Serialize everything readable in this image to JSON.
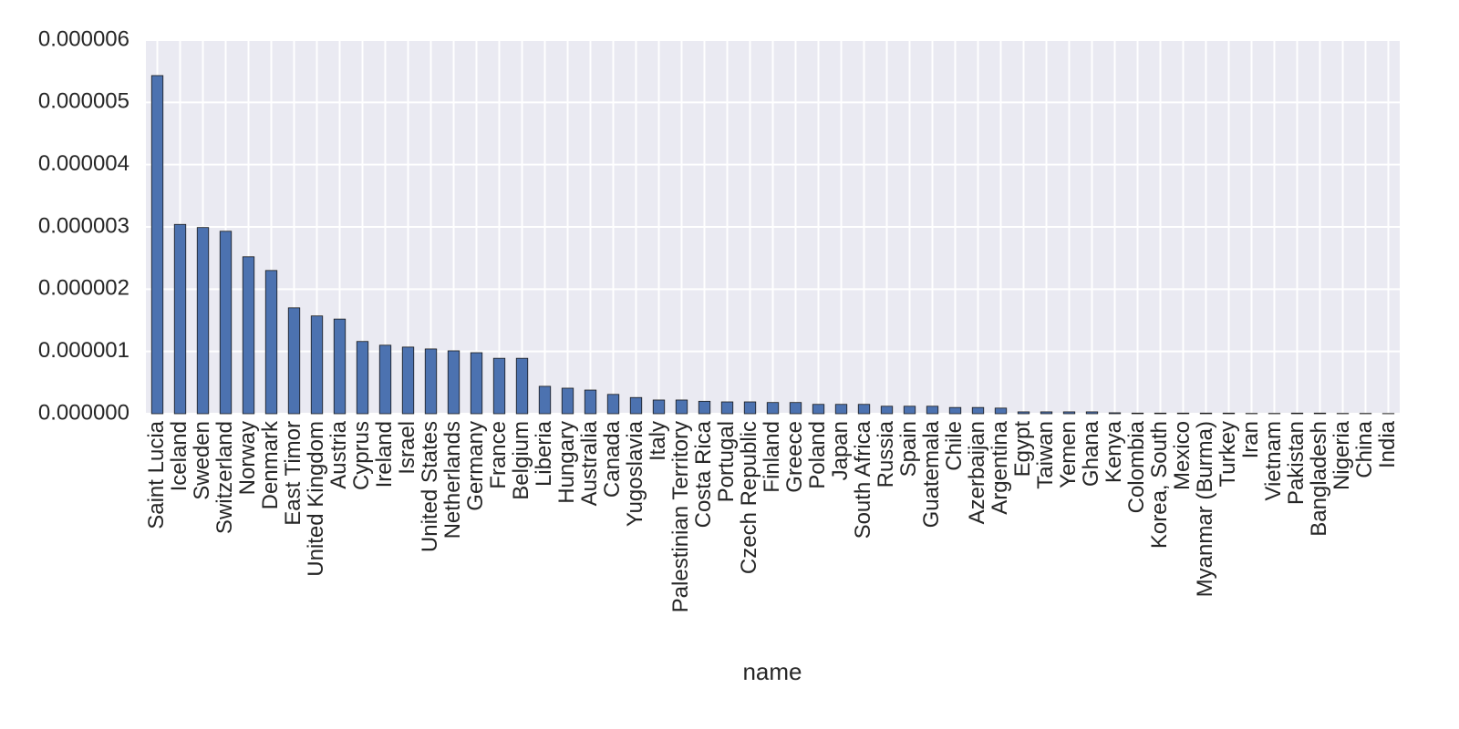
{
  "chart_data": {
    "type": "bar",
    "x_label": "name",
    "categories": [
      "Saint Lucia",
      "Iceland",
      "Sweden",
      "Switzerland",
      "Norway",
      "Denmark",
      "East Timor",
      "United Kingdom",
      "Austria",
      "Cyprus",
      "Ireland",
      "Israel",
      "United States",
      "Netherlands",
      "Germany",
      "France",
      "Belgium",
      "Liberia",
      "Hungary",
      "Australia",
      "Canada",
      "Yugoslavia",
      "Italy",
      "Palestinian Territory",
      "Costa Rica",
      "Portugal",
      "Czech Republic",
      "Finland",
      "Greece",
      "Poland",
      "Japan",
      "South Africa",
      "Russia",
      "Spain",
      "Guatemala",
      "Chile",
      "Azerbaijan",
      "Argentina",
      "Egypt",
      "Taiwan",
      "Yemen",
      "Ghana",
      "Kenya",
      "Colombia",
      "Korea, South",
      "Mexico",
      "Myanmar (Burma)",
      "Turkey",
      "Iran",
      "Vietnam",
      "Pakistan",
      "Bangladesh",
      "Nigeria",
      "China",
      "India"
    ],
    "values": [
      5.43e-06,
      3.04e-06,
      2.99e-06,
      2.93e-06,
      2.52e-06,
      2.3e-06,
      1.7e-06,
      1.57e-06,
      1.52e-06,
      1.16e-06,
      1.1e-06,
      1.07e-06,
      1.04e-06,
      1.01e-06,
      9.8e-07,
      8.9e-07,
      8.9e-07,
      4.4e-07,
      4.1e-07,
      3.8e-07,
      3.1e-07,
      2.6e-07,
      2.2e-07,
      2.2e-07,
      2e-07,
      1.9e-07,
      1.9e-07,
      1.8e-07,
      1.8e-07,
      1.5e-07,
      1.5e-07,
      1.5e-07,
      1.2e-07,
      1.2e-07,
      1.2e-07,
      1e-07,
      1e-07,
      9e-08,
      3e-08,
      3e-08,
      3e-08,
      3e-08,
      1.5e-08,
      1e-08,
      1e-08,
      1e-08,
      1e-08,
      1e-08,
      5e-09,
      5e-09,
      1e-08,
      1e-08,
      5e-09,
      5e-09,
      3e-09
    ],
    "color": "#4c72b0",
    "ylim": [
      0,
      6e-06
    ],
    "yticks": [
      {
        "value": 0,
        "label": "0.000000"
      },
      {
        "value": 1e-06,
        "label": "0.000001"
      },
      {
        "value": 2e-06,
        "label": "0.000002"
      },
      {
        "value": 3e-06,
        "label": "0.000003"
      },
      {
        "value": 4e-06,
        "label": "0.000004"
      },
      {
        "value": 5e-06,
        "label": "0.000005"
      },
      {
        "value": 6e-06,
        "label": "0.000006"
      }
    ],
    "grid": true
  }
}
